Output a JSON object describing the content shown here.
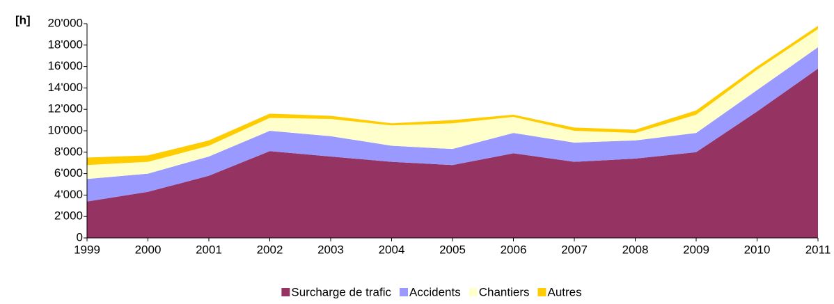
{
  "chart_data": {
    "type": "stacked_area",
    "y_label": "[h]",
    "categories": [
      "1999",
      "2000",
      "2001",
      "2002",
      "2003",
      "2004",
      "2005",
      "2006",
      "2007",
      "2008",
      "2009",
      "2010",
      "2011"
    ],
    "series": [
      {
        "name": "Surcharge de trafic",
        "color": "#953462",
        "values": [
          3400,
          4300,
          5800,
          8100,
          7600,
          7100,
          6800,
          7900,
          7100,
          7400,
          8000,
          11800,
          15800
        ]
      },
      {
        "name": "Accidents",
        "color": "#9999ff",
        "values": [
          2100,
          1700,
          1800,
          1900,
          1900,
          1500,
          1500,
          1900,
          1800,
          1700,
          1800,
          2000,
          2000
        ]
      },
      {
        "name": "Chantiers",
        "color": "#ffffcc",
        "values": [
          1300,
          1100,
          1000,
          1200,
          1600,
          1900,
          2400,
          1500,
          1100,
          700,
          1700,
          1900,
          1700
        ]
      },
      {
        "name": "Autres",
        "color": "#ffcc00",
        "values": [
          700,
          600,
          500,
          400,
          300,
          200,
          300,
          200,
          300,
          300,
          400,
          300,
          300
        ]
      }
    ],
    "ylim": [
      0,
      20000
    ],
    "yticks": [
      0,
      {
        "value": 2000,
        "label": "2'000"
      },
      {
        "value": 4000,
        "label": "4'000"
      },
      {
        "value": 6000,
        "label": "6'000"
      },
      {
        "value": 8000,
        "label": "8'000"
      },
      {
        "value": 10000,
        "label": "10'000"
      },
      {
        "value": 12000,
        "label": "12'000"
      },
      {
        "value": 14000,
        "label": "14'000"
      },
      {
        "value": 16000,
        "label": "16'000"
      },
      {
        "value": 18000,
        "label": "18'000"
      },
      {
        "value": 20000,
        "label": "20'000"
      }
    ],
    "grid": false,
    "legend": "bottom"
  }
}
